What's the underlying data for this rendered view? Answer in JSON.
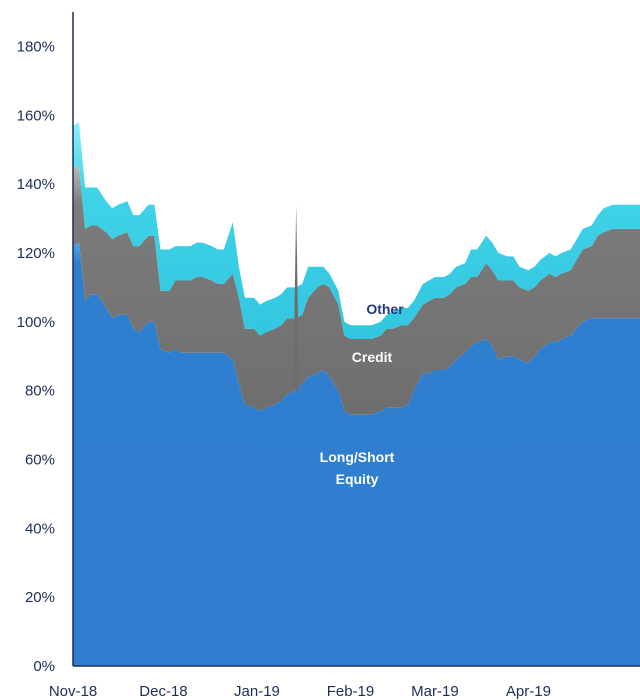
{
  "chart_data": {
    "type": "area",
    "stacked": true,
    "x": [
      "2018-11-01",
      "2018-11-03",
      "2018-11-05",
      "2018-11-07",
      "2018-11-09",
      "2018-11-12",
      "2018-11-14",
      "2018-11-16",
      "2018-11-19",
      "2018-11-21",
      "2018-11-23",
      "2018-11-26",
      "2018-11-28",
      "2018-11-30",
      "2018-12-03",
      "2018-12-05",
      "2018-12-07",
      "2018-12-10",
      "2018-12-12",
      "2018-12-14",
      "2018-12-17",
      "2018-12-19",
      "2018-12-21",
      "2018-12-24",
      "2018-12-26",
      "2018-12-28",
      "2018-12-31",
      "2019-01-02",
      "2019-01-04",
      "2019-01-07",
      "2019-01-09",
      "2019-01-11",
      "2019-01-14",
      "2019-01-16",
      "2019-01-18",
      "2019-01-21",
      "2019-01-23",
      "2019-01-25",
      "2019-01-28",
      "2019-01-30",
      "2019-02-01",
      "2019-02-04",
      "2019-02-06",
      "2019-02-08",
      "2019-02-11",
      "2019-02-13",
      "2019-02-15",
      "2019-02-18",
      "2019-02-20",
      "2019-02-22",
      "2019-02-25",
      "2019-02-27",
      "2019-03-01",
      "2019-03-04",
      "2019-03-06",
      "2019-03-08",
      "2019-03-11",
      "2019-03-13",
      "2019-03-15",
      "2019-03-18",
      "2019-03-20",
      "2019-03-22",
      "2019-03-25",
      "2019-03-27",
      "2019-03-29",
      "2019-04-01",
      "2019-04-03",
      "2019-04-05",
      "2019-04-08",
      "2019-04-10",
      "2019-04-12",
      "2019-04-15",
      "2019-04-17",
      "2019-04-19",
      "2019-04-22",
      "2019-04-24",
      "2019-04-26",
      "2019-04-29",
      "2019-05-01",
      "2019-05-03",
      "2019-05-06",
      "2019-05-08"
    ],
    "series": [
      {
        "name": "Long/Short Equity",
        "color": "#2f7fd0",
        "values": [
          122,
          123,
          106,
          108,
          108,
          104,
          101,
          102,
          102,
          98,
          97,
          100,
          100,
          92,
          91,
          92,
          91,
          91,
          91,
          91,
          91,
          91,
          91,
          89,
          82,
          76,
          75,
          74,
          75,
          76,
          77,
          79,
          80,
          82,
          84,
          85,
          86,
          84,
          80,
          74,
          73,
          73,
          73,
          73,
          74,
          75,
          75,
          75,
          76,
          80,
          85,
          85,
          86,
          86,
          87,
          89,
          91,
          93,
          94,
          95,
          93,
          89,
          90,
          90,
          89,
          88,
          90,
          92,
          94,
          94,
          95,
          96,
          98,
          100,
          101,
          101,
          101,
          101,
          101,
          101,
          101,
          101
        ]
      },
      {
        "name": "Credit",
        "color": "#7c7c7c",
        "values": [
          23,
          22,
          21,
          20,
          20,
          22,
          23,
          23,
          24,
          24,
          25,
          25,
          25,
          17,
          18,
          20,
          21,
          21,
          22,
          22,
          21,
          20,
          20,
          25,
          25,
          22,
          23,
          22,
          22,
          22,
          22,
          22,
          21,
          20,
          23,
          25,
          25,
          26,
          25,
          22,
          22,
          22,
          22,
          22,
          22,
          23,
          23,
          24,
          23,
          21,
          20,
          21,
          21,
          21,
          21,
          21,
          20,
          20,
          19,
          22,
          22,
          23,
          22,
          22,
          21,
          21,
          20,
          20,
          20,
          19,
          19,
          19,
          20,
          21,
          21,
          24,
          25,
          26,
          26,
          26,
          26,
          26
        ]
      },
      {
        "name": "Other",
        "color": "#40d3e8",
        "values": [
          12,
          13,
          12,
          11,
          11,
          9,
          9,
          9,
          9,
          9,
          9,
          9,
          9,
          12,
          12,
          10,
          10,
          10,
          10,
          10,
          10,
          10,
          10,
          15,
          9,
          9,
          9,
          9,
          9,
          9,
          9,
          9,
          9,
          9,
          9,
          6,
          5,
          4,
          4,
          4,
          4,
          4,
          4,
          4,
          4,
          4,
          5,
          5,
          5,
          5,
          6,
          6,
          6,
          6,
          6,
          6,
          6,
          8,
          8,
          8,
          8,
          8,
          7,
          7,
          6,
          6,
          6,
          6,
          6,
          6,
          6,
          6,
          6,
          6,
          6,
          6,
          7,
          7,
          7,
          7,
          7,
          7
        ]
      }
    ],
    "spikes": [
      {
        "x": "2019-01-14",
        "value": 134
      }
    ],
    "xticks": [
      "Nov-18",
      "Dec-18",
      "Jan-19",
      "Feb-19",
      "Mar-19",
      "Apr-19"
    ],
    "ytick_labels": [
      "0%",
      "20%",
      "40%",
      "60%",
      "80%",
      "100%",
      "120%",
      "140%",
      "160%",
      "180%"
    ],
    "ylim": [
      0,
      190
    ],
    "xlabel": "",
    "ylabel": "",
    "title": "",
    "area_labels": {
      "equity_line1": "Long/Short",
      "equity_line2": "Equity",
      "credit": "Credit",
      "other": "Other"
    },
    "grid": false,
    "legend": "none"
  }
}
